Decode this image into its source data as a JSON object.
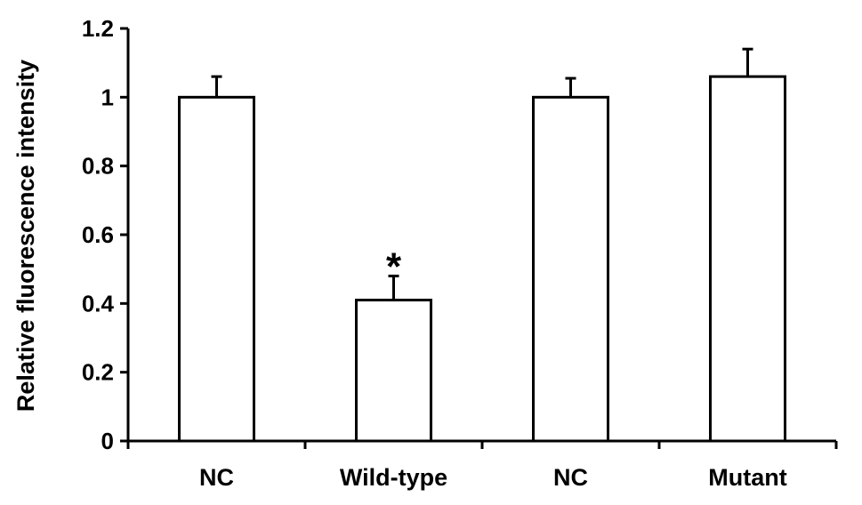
{
  "chart_data": {
    "type": "bar",
    "categories": [
      "NC",
      "Wild-type",
      "NC",
      "Mutant"
    ],
    "values": [
      1.0,
      0.41,
      1.0,
      1.06
    ],
    "errors": [
      0.06,
      0.07,
      0.055,
      0.08
    ],
    "annotations": [
      {
        "category_index": 1,
        "text": "*"
      }
    ],
    "title": "",
    "xlabel": "",
    "ylabel": "Relative fluorescence intensity",
    "ylim": [
      0,
      1.2
    ],
    "yticks": [
      "0",
      "0.2",
      "0.4",
      "0.6",
      "0.8",
      "1",
      "1.2"
    ],
    "grid": false,
    "legend": "none",
    "colors": {
      "bar_fill": "#ffffff",
      "stroke": "#000000"
    }
  }
}
